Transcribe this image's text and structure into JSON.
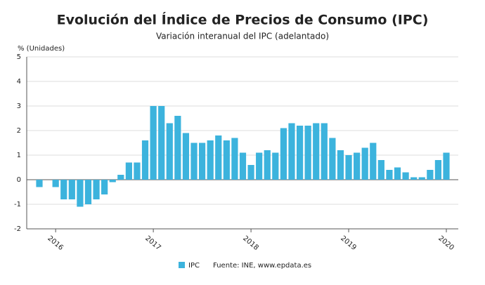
{
  "chart_data": {
    "type": "bar",
    "title": "Evolución del Índice de Precios de Consumo (IPC)",
    "subtitle": "Variación interanual del IPC (adelantado)",
    "y_axis_label": "% (Unidades)",
    "source": "Fuente: INE, www.epdata.es",
    "categories": [
      null,
      null,
      "2016",
      null,
      null,
      null,
      null,
      null,
      null,
      null,
      null,
      null,
      null,
      null,
      "2017",
      null,
      null,
      null,
      null,
      null,
      null,
      null,
      null,
      null,
      null,
      null,
      "2018",
      null,
      null,
      null,
      null,
      null,
      null,
      null,
      null,
      null,
      null,
      null,
      "2019",
      null,
      null,
      null,
      null,
      null,
      null,
      null,
      null,
      null,
      null,
      null,
      "2020"
    ],
    "series": [
      {
        "name": "IPC",
        "color": "#3cb3dd",
        "values": [
          -0.3,
          0.0,
          -0.3,
          -0.8,
          -0.8,
          -1.1,
          -1.0,
          -0.8,
          -0.6,
          -0.1,
          0.2,
          0.7,
          0.7,
          1.6,
          3.0,
          3.0,
          2.3,
          2.6,
          1.9,
          1.5,
          1.5,
          1.6,
          1.8,
          1.6,
          1.7,
          1.1,
          0.6,
          1.1,
          1.2,
          1.1,
          2.1,
          2.3,
          2.2,
          2.2,
          2.3,
          2.3,
          1.7,
          1.2,
          1.0,
          1.1,
          1.3,
          1.5,
          0.8,
          0.4,
          0.5,
          0.3,
          0.1,
          0.1,
          0.4,
          0.8,
          1.1
        ]
      }
    ],
    "ylim": [
      -2,
      5
    ],
    "yticks": [
      -2,
      -1,
      0,
      1,
      2,
      3,
      4,
      5
    ],
    "grid": true
  }
}
